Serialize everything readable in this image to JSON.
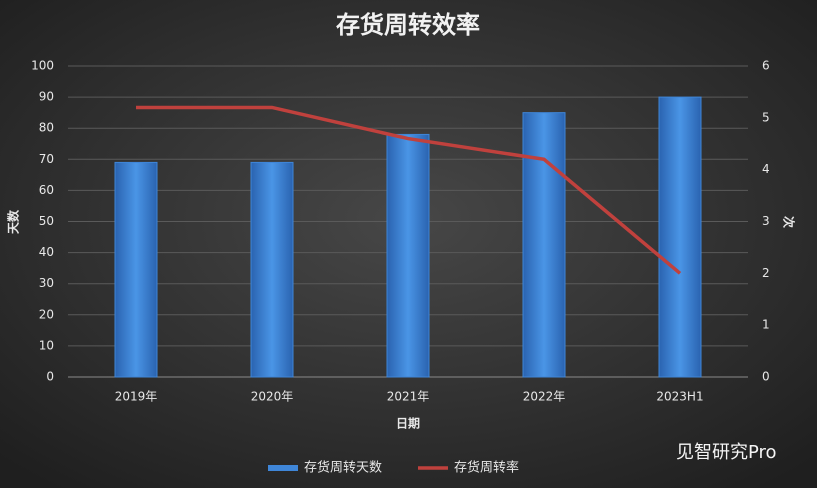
{
  "chart_data": {
    "type": "bar",
    "title": "存货周转效率",
    "x_label": "日期",
    "y_label": "天数",
    "y2_label": "次",
    "categories": [
      "2019年",
      "2020年",
      "2021年",
      "2022年",
      "2023H1"
    ],
    "series": [
      {
        "name": "存货周转天数",
        "type": "bar",
        "color": "#3f86d8",
        "values": [
          69,
          69,
          78,
          85,
          90
        ]
      },
      {
        "name": "存货周转率",
        "type": "line",
        "color": "#c0413d",
        "axis": "y2",
        "values": [
          5.2,
          5.2,
          4.6,
          4.2,
          2.0
        ]
      }
    ],
    "ylim": [
      0,
      100
    ],
    "yticks": [
      0,
      10,
      20,
      30,
      40,
      50,
      60,
      70,
      80,
      90,
      100
    ],
    "y2lim": [
      0,
      6
    ],
    "y2ticks": [
      0,
      1,
      2,
      3,
      4,
      5,
      6
    ],
    "grid": true,
    "legend": "bottom",
    "watermark": "见智研究Pro"
  }
}
